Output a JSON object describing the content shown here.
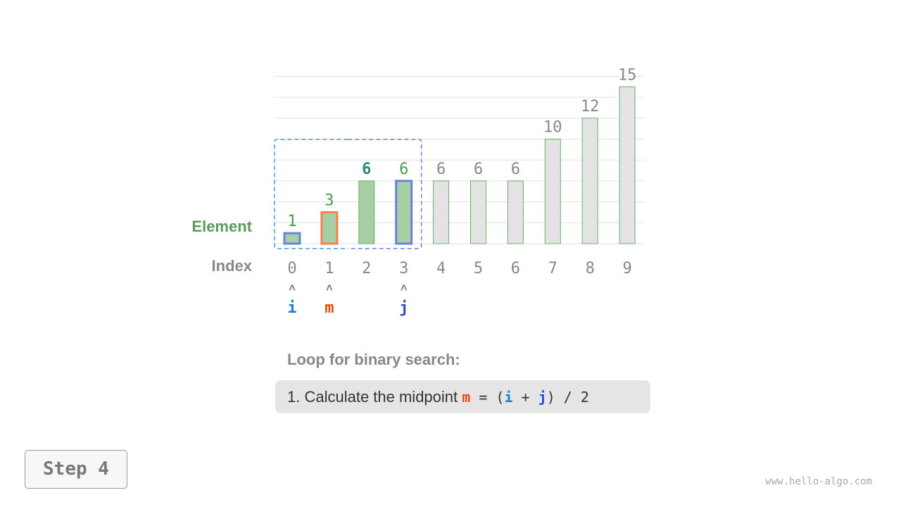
{
  "chart_data": {
    "type": "bar",
    "categories": [
      "0",
      "1",
      "2",
      "3",
      "4",
      "5",
      "6",
      "7",
      "8",
      "9"
    ],
    "values": [
      1,
      3,
      6,
      6,
      6,
      6,
      6,
      10,
      12,
      15
    ],
    "ylim": [
      0,
      16
    ],
    "grid": true,
    "row_labels": {
      "element": "Element",
      "index": "Index"
    },
    "pointers": [
      {
        "name": "i",
        "index": 0,
        "color": "#1a7fd0"
      },
      {
        "name": "m",
        "index": 1,
        "color": "#e8490f"
      },
      {
        "name": "j",
        "index": 3,
        "color": "#2f4fd0"
      }
    ],
    "search_range": [
      0,
      3
    ],
    "colors": {
      "active_bar": "#a6cfa6",
      "inactive_bar": "#e3e3e3",
      "bar_border": "#6aaf6a",
      "i_border": "#6a82dc",
      "m_border": "#f5804d",
      "value_active": "#4a9a4a",
      "value_mid": "#2f8a7a",
      "value_inactive": "#888888"
    }
  },
  "text": {
    "heading": "Loop for binary search:",
    "step_prefix": "1. Calculate the midpoint ",
    "m": "m",
    "eq": " = (",
    "i": "i",
    "plus": " + ",
    "j": "j",
    "tail": ") / 2"
  },
  "step_button": "Step 4",
  "watermark": "www.hello-algo.com",
  "pointer_arrow": "˄"
}
